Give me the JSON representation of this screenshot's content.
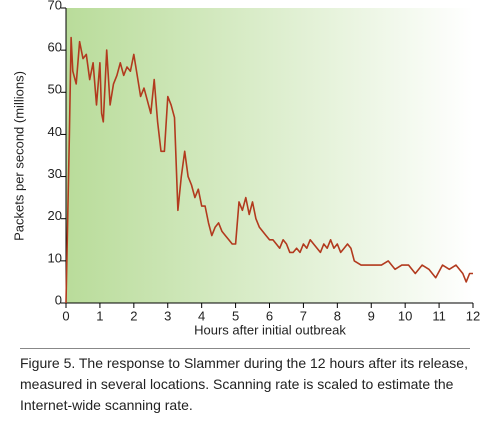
{
  "chart_data": {
    "type": "line",
    "ylabel": "Packets per second (millions)",
    "xlabel": "Hours after initial outbreak",
    "caption": "Figure 5. The response to Slammer during the 12 hours after its release, measured in several locations. Scanning rate is scaled to estimate the Internet-wide scanning rate.",
    "color": "#b23a1e",
    "x": [
      0,
      0.05,
      0.1,
      0.15,
      0.2,
      0.3,
      0.4,
      0.5,
      0.6,
      0.7,
      0.8,
      0.9,
      1.0,
      1.05,
      1.1,
      1.2,
      1.3,
      1.4,
      1.5,
      1.6,
      1.7,
      1.8,
      1.9,
      2.0,
      2.1,
      2.2,
      2.3,
      2.4,
      2.5,
      2.6,
      2.7,
      2.8,
      2.9,
      3.0,
      3.1,
      3.2,
      3.3,
      3.4,
      3.5,
      3.6,
      3.7,
      3.8,
      3.9,
      4.0,
      4.1,
      4.2,
      4.3,
      4.4,
      4.5,
      4.6,
      4.7,
      4.8,
      4.9,
      5.0,
      5.1,
      5.2,
      5.3,
      5.4,
      5.5,
      5.6,
      5.7,
      5.8,
      5.9,
      6.0,
      6.1,
      6.2,
      6.3,
      6.4,
      6.5,
      6.6,
      6.7,
      6.8,
      6.9,
      7.0,
      7.1,
      7.2,
      7.3,
      7.5,
      7.6,
      7.7,
      7.8,
      7.9,
      8.0,
      8.1,
      8.2,
      8.3,
      8.4,
      8.5,
      8.7,
      8.9,
      9.1,
      9.3,
      9.5,
      9.7,
      9.9,
      10.1,
      10.3,
      10.5,
      10.7,
      10.9,
      11.1,
      11.3,
      11.5,
      11.7,
      11.8,
      11.9,
      12.0
    ],
    "values": [
      0,
      20,
      40,
      63,
      55,
      52,
      62,
      58,
      59,
      53,
      57,
      47,
      57,
      45,
      43,
      60,
      47,
      52,
      54,
      57,
      54,
      56,
      55,
      59,
      54,
      49,
      51,
      48,
      45,
      53,
      43,
      36,
      36,
      49,
      47,
      44,
      22,
      30,
      36,
      30,
      28,
      25,
      27,
      23,
      23,
      19,
      16,
      18,
      19,
      17,
      16,
      15,
      14,
      14,
      24,
      22,
      25,
      21,
      24,
      20,
      18,
      17,
      16,
      15,
      15,
      14,
      13,
      15,
      14,
      12,
      12,
      13,
      12,
      14,
      13,
      15,
      14,
      12,
      14,
      13,
      15,
      13,
      14,
      12,
      13,
      14,
      13,
      10,
      9,
      9,
      9,
      9,
      10,
      8,
      9,
      9,
      7,
      9,
      8,
      6,
      9,
      8,
      9,
      7,
      5,
      7,
      7
    ],
    "xlim": [
      0,
      12
    ],
    "xticks": [
      0,
      1,
      2,
      3,
      4,
      5,
      6,
      7,
      8,
      9,
      10,
      11,
      12
    ],
    "ylim": [
      0,
      70
    ],
    "yticks": [
      0,
      10,
      20,
      30,
      40,
      50,
      60,
      70
    ]
  }
}
